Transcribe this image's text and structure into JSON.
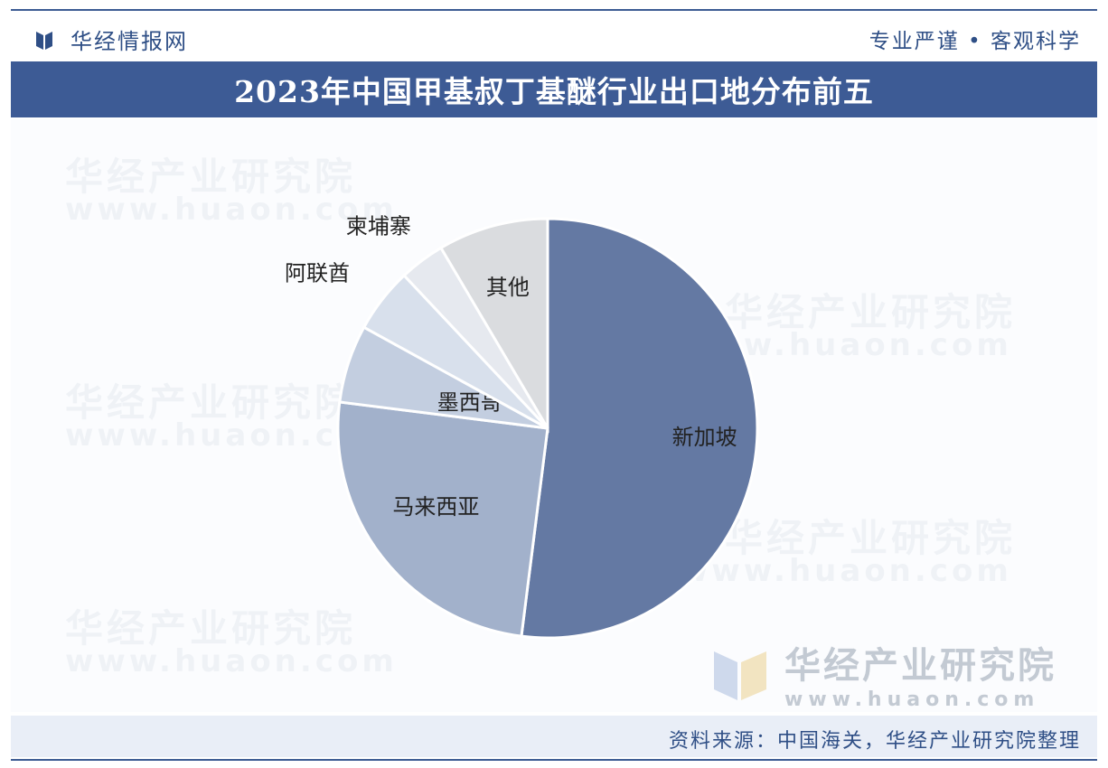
{
  "header": {
    "brand_name": "华经情报网",
    "slogan": "专业严谨 • 客观科学"
  },
  "title": "2023年中国甲基叔丁基醚行业出口地分布前五",
  "watermark": {
    "name": "华经产业研究院",
    "url": "www.huaon.com"
  },
  "footer": {
    "source": "资料来源：中国海关，华经产业研究院整理"
  },
  "chart_data": {
    "type": "pie",
    "start": "12 o'clock",
    "direction": "clockwise",
    "slices": [
      {
        "label": "新加坡",
        "value": 52.0,
        "color": "#6479a3"
      },
      {
        "label": "马来西亚",
        "value": 25.0,
        "color": "#a2b1cb"
      },
      {
        "label": "墨西哥",
        "value": 6.0,
        "color": "#c3cee0"
      },
      {
        "label": "阿联酋",
        "value": 5.0,
        "color": "#d8e0ec"
      },
      {
        "label": "柬埔寨",
        "value": 3.5,
        "color": "#e6e9ef"
      },
      {
        "label": "其他",
        "value": 8.5,
        "color": "#dadcdf"
      }
    ]
  }
}
